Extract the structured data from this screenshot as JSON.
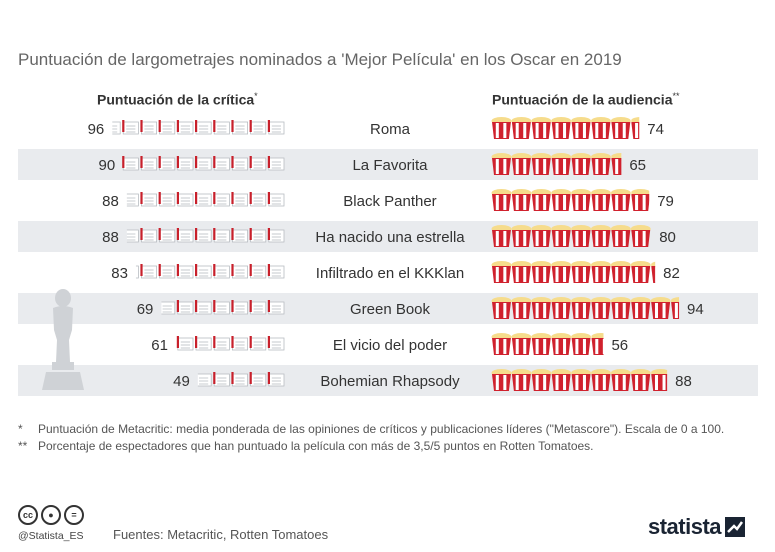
{
  "title": "Puntuación de largometrajes nominados a 'Mejor Película' en los Oscar en 2019",
  "chart_data": {
    "type": "pictogram",
    "critics_header": "Puntuación de la crítica",
    "critics_header_mark": "*",
    "audience_header": "Puntuación de la audiencia",
    "audience_header_mark": "**",
    "scale": [
      0,
      100
    ],
    "rows": [
      {
        "movie": "Roma",
        "critics": 96,
        "audience": 74
      },
      {
        "movie": "La Favorita",
        "critics": 90,
        "audience": 65
      },
      {
        "movie": "Black Panther",
        "critics": 88,
        "audience": 79
      },
      {
        "movie": "Ha nacido una estrella",
        "critics": 88,
        "audience": 80
      },
      {
        "movie": "Infiltrado en el KKKlan",
        "critics": 83,
        "audience": 82
      },
      {
        "movie": "Green Book",
        "critics": 69,
        "audience": 94
      },
      {
        "movie": "El vicio del poder",
        "critics": 61,
        "audience": 56
      },
      {
        "movie": "Bohemian Rhapsody",
        "critics": 49,
        "audience": 88
      }
    ],
    "colors": {
      "row_stripe": "#e9ebee",
      "popcorn_red": "#d0212d",
      "popcorn_white": "#ffffff",
      "popcorn_top": "#f6dc8c",
      "clapper_red": "#c8202b",
      "clapper_gray": "#b8bcc2",
      "oscar_silhouette": "#cfd2d6"
    }
  },
  "notes": [
    {
      "mark": "*",
      "text": "Puntuación de Metacritic: media ponderada de las opiniones de críticos y publicaciones líderes (\"Metascore\"). Escala de 0 a 100."
    },
    {
      "mark": "**",
      "text": "Porcentaje de espectadores que han puntuado la película con más de 3,5/5 puntos en Rotten Tomatoes."
    }
  ],
  "footer": {
    "handle": "@Statista_ES",
    "source": "Fuentes: Metacritic, Rotten Tomatoes",
    "logo": "statista",
    "cc_icons": [
      "cc",
      "by",
      "nd"
    ]
  }
}
